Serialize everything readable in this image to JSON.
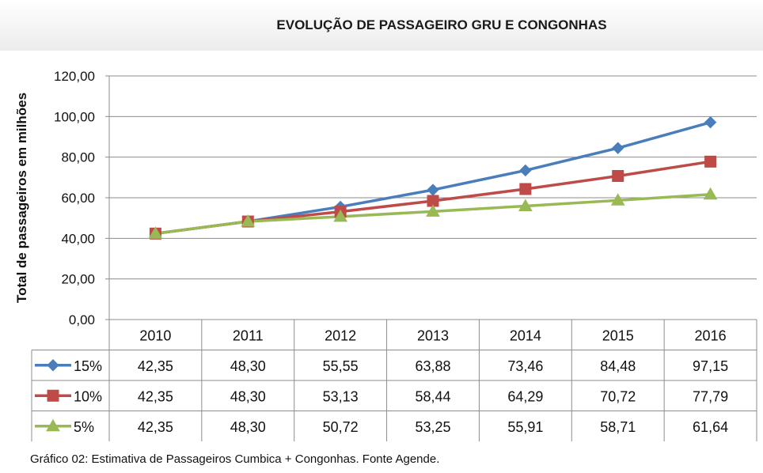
{
  "chart_data": {
    "type": "line",
    "title": "EVOLUÇÃO DE PASSAGEIRO GRU E CONGONHAS",
    "ylabel": "Total de passageiros em milhões",
    "xlabel": "",
    "ylim": [
      0,
      120
    ],
    "yticks": [
      "0,00",
      "20,00",
      "40,00",
      "60,00",
      "80,00",
      "100,00",
      "120,00"
    ],
    "categories": [
      "2010",
      "2011",
      "2012",
      "2013",
      "2014",
      "2015",
      "2016"
    ],
    "grid": true,
    "legend": "data table",
    "series": [
      {
        "name": "15%",
        "color": "#4a7ebb",
        "marker": "diamond",
        "values": [
          42.35,
          48.3,
          55.55,
          63.88,
          73.46,
          84.48,
          97.15
        ],
        "labels": [
          "42,35",
          "48,30",
          "55,55",
          "63,88",
          "73,46",
          "84,48",
          "97,15"
        ]
      },
      {
        "name": "10%",
        "color": "#be4b48",
        "marker": "square",
        "values": [
          42.35,
          48.3,
          53.13,
          58.44,
          64.29,
          70.72,
          77.79
        ],
        "labels": [
          "42,35",
          "48,30",
          "53,13",
          "58,44",
          "64,29",
          "70,72",
          "77,79"
        ]
      },
      {
        "name": "5%",
        "color": "#98b954",
        "marker": "triangle",
        "values": [
          42.35,
          48.3,
          50.72,
          53.25,
          55.91,
          58.71,
          61.64
        ],
        "labels": [
          "42,35",
          "48,30",
          "50,72",
          "53,25",
          "55,91",
          "58,71",
          "61,64"
        ]
      }
    ]
  },
  "caption": "Gráfico 02: Estimativa de Passageiros Cumbica + Congonhas. Fonte Agende."
}
